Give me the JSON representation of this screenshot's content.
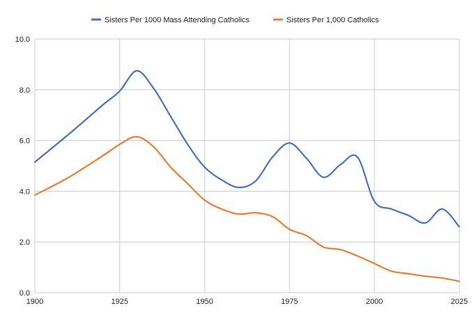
{
  "chart_data": {
    "type": "line",
    "title": "",
    "xlabel": "",
    "ylabel": "",
    "xlim": [
      1900,
      2025
    ],
    "ylim": [
      0,
      10
    ],
    "grid": true,
    "legend_position": "top",
    "x_ticks": [
      1900,
      1925,
      1950,
      1975,
      2000,
      2025
    ],
    "x_tick_labels": [
      "1900",
      "1925",
      "1950",
      "1975",
      "2000",
      "2025"
    ],
    "y_ticks": [
      0,
      2,
      4,
      6,
      8,
      10
    ],
    "y_tick_labels": [
      "0.0",
      "2.0",
      "4.0",
      "6.0",
      "8.0",
      "10.0"
    ],
    "series": [
      {
        "name": "Sisters Per 1000 Mass Attending Catholics",
        "color": "#4472c4",
        "x": [
          1900,
          1910,
          1920,
          1925,
          1930,
          1935,
          1940,
          1945,
          1950,
          1955,
          1960,
          1965,
          1970,
          1975,
          1980,
          1985,
          1990,
          1995,
          2000,
          2005,
          2010,
          2015,
          2020,
          2025
        ],
        "values": [
          5.15,
          6.25,
          7.4,
          7.95,
          8.75,
          8.05,
          6.95,
          5.85,
          4.95,
          4.45,
          4.15,
          4.4,
          5.35,
          5.9,
          5.3,
          4.55,
          5.05,
          5.35,
          3.6,
          3.3,
          3.05,
          2.75,
          3.3,
          2.6
        ]
      },
      {
        "name": "Sisters Per 1,000 Catholics",
        "color": "#ed7d31",
        "x": [
          1900,
          1910,
          1920,
          1925,
          1930,
          1935,
          1940,
          1945,
          1950,
          1955,
          1960,
          1965,
          1970,
          1975,
          1980,
          1985,
          1990,
          1995,
          2000,
          2005,
          2010,
          2015,
          2020,
          2025
        ],
        "values": [
          3.85,
          4.55,
          5.4,
          5.85,
          6.15,
          5.75,
          4.95,
          4.3,
          3.65,
          3.3,
          3.1,
          3.15,
          3.0,
          2.5,
          2.25,
          1.8,
          1.7,
          1.45,
          1.15,
          0.85,
          0.75,
          0.65,
          0.58,
          0.45
        ]
      }
    ]
  }
}
